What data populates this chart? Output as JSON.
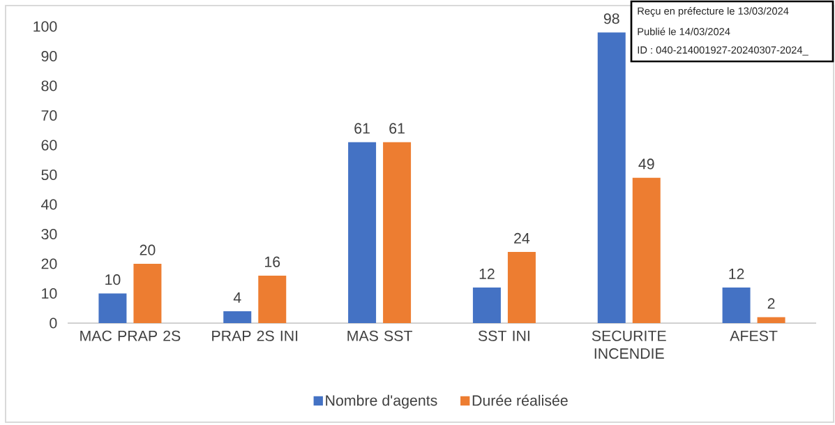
{
  "chart_data": {
    "type": "bar",
    "categories": [
      "MAC PRAP 2S",
      "PRAP 2S INI",
      "MAS SST",
      "SST INI",
      "SECURITE INCENDIE",
      "AFEST"
    ],
    "series": [
      {
        "name": "Nombre d'agents",
        "color": "#4472c4",
        "values": [
          10,
          4,
          61,
          12,
          98,
          12
        ]
      },
      {
        "name": "Durée réalisée",
        "color": "#ed7d31",
        "values": [
          20,
          16,
          61,
          24,
          49,
          2
        ]
      }
    ],
    "ylim": [
      0,
      100
    ],
    "yticks": [
      0,
      10,
      20,
      30,
      40,
      50,
      60,
      70,
      80,
      90,
      100
    ],
    "data_labels": true,
    "grid": false,
    "legend": "bottom",
    "annotations": [
      "Reçu en préfecture le 13/03/2024",
      "Publié le 14/03/2024",
      "ID : 040-214001927-20240307-2024_"
    ]
  }
}
